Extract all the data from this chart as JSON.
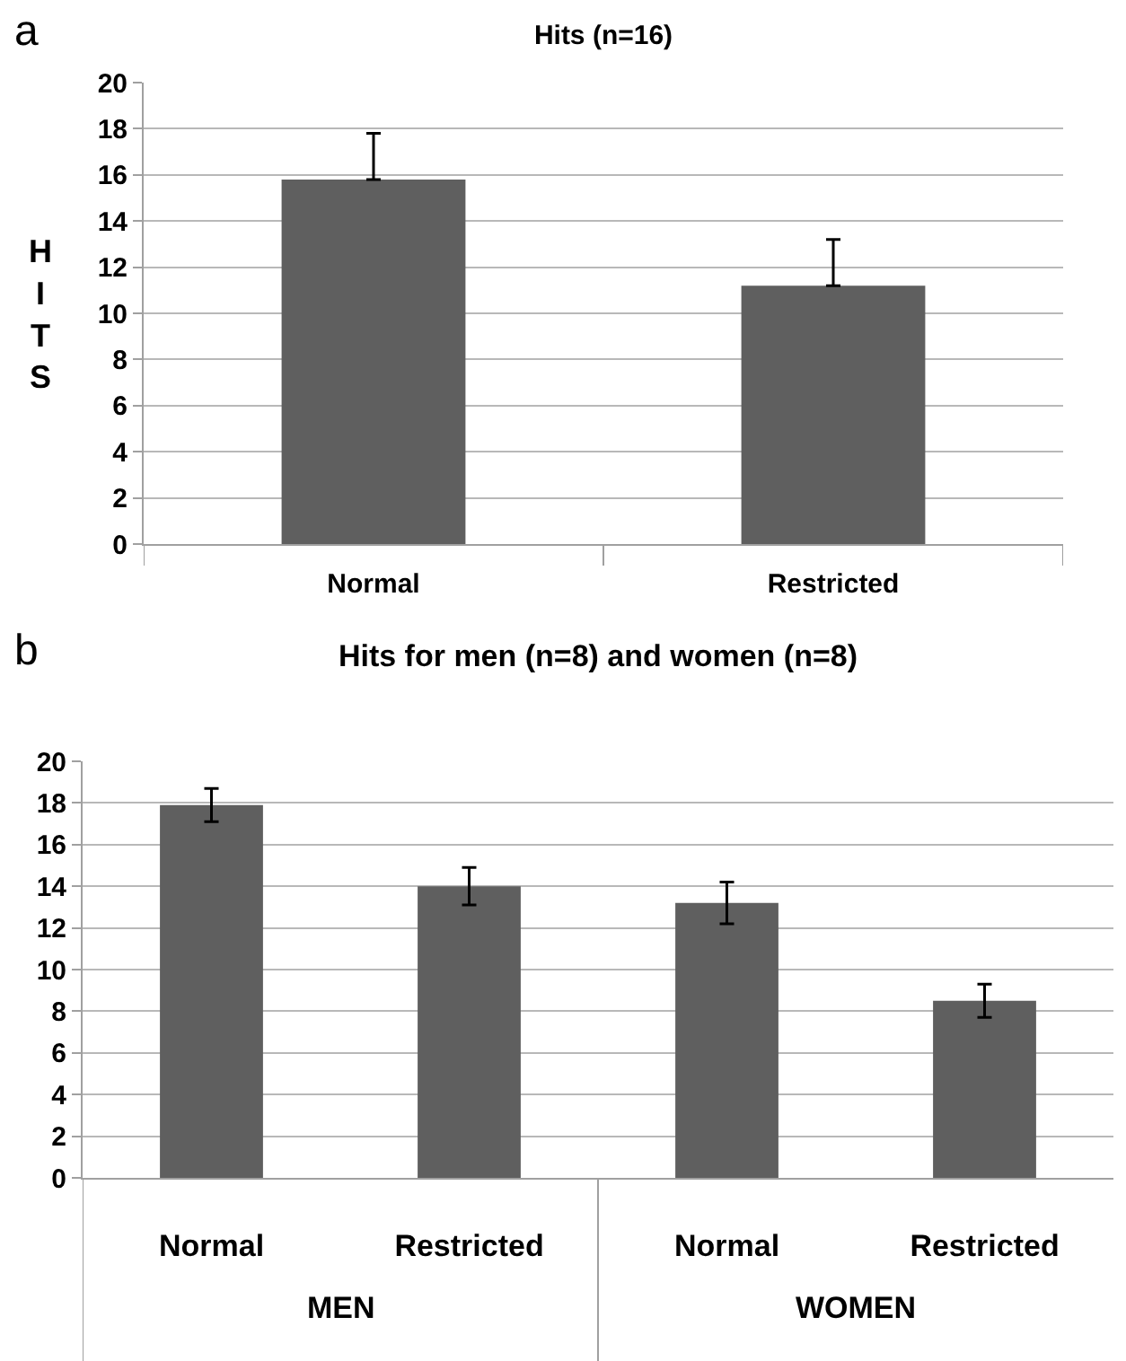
{
  "chart_data": [
    {
      "type": "bar",
      "title": "Hits (n=16)",
      "ylabel": "HITS",
      "categories": [
        "Normal",
        "Restricted"
      ],
      "values": [
        15.8,
        11.2
      ],
      "errors": [
        [
          15.8,
          17.8
        ],
        [
          11.2,
          13.2
        ]
      ],
      "color": "#5f5f5f",
      "ylim": [
        0,
        20
      ],
      "yticks": [
        0,
        2,
        4,
        6,
        8,
        10,
        12,
        14,
        16,
        18,
        20
      ],
      "grid": "y",
      "annotations": [
        "a"
      ]
    },
    {
      "type": "bar",
      "title": "Hits for men (n=8) and women (n=8)",
      "categories": [
        "Normal",
        "Restricted",
        "Normal",
        "Restricted"
      ],
      "values": [
        17.9,
        14.0,
        13.2,
        8.5
      ],
      "errors": [
        0.8,
        0.9,
        1.0,
        0.8
      ],
      "color": "#5f5f5f",
      "ylim": [
        0,
        20
      ],
      "yticks": [
        0,
        2,
        4,
        6,
        8,
        10,
        12,
        14,
        16,
        18,
        20
      ],
      "grid": "y",
      "annotations": [
        "b",
        "MEN",
        "WOMEN"
      ]
    }
  ]
}
